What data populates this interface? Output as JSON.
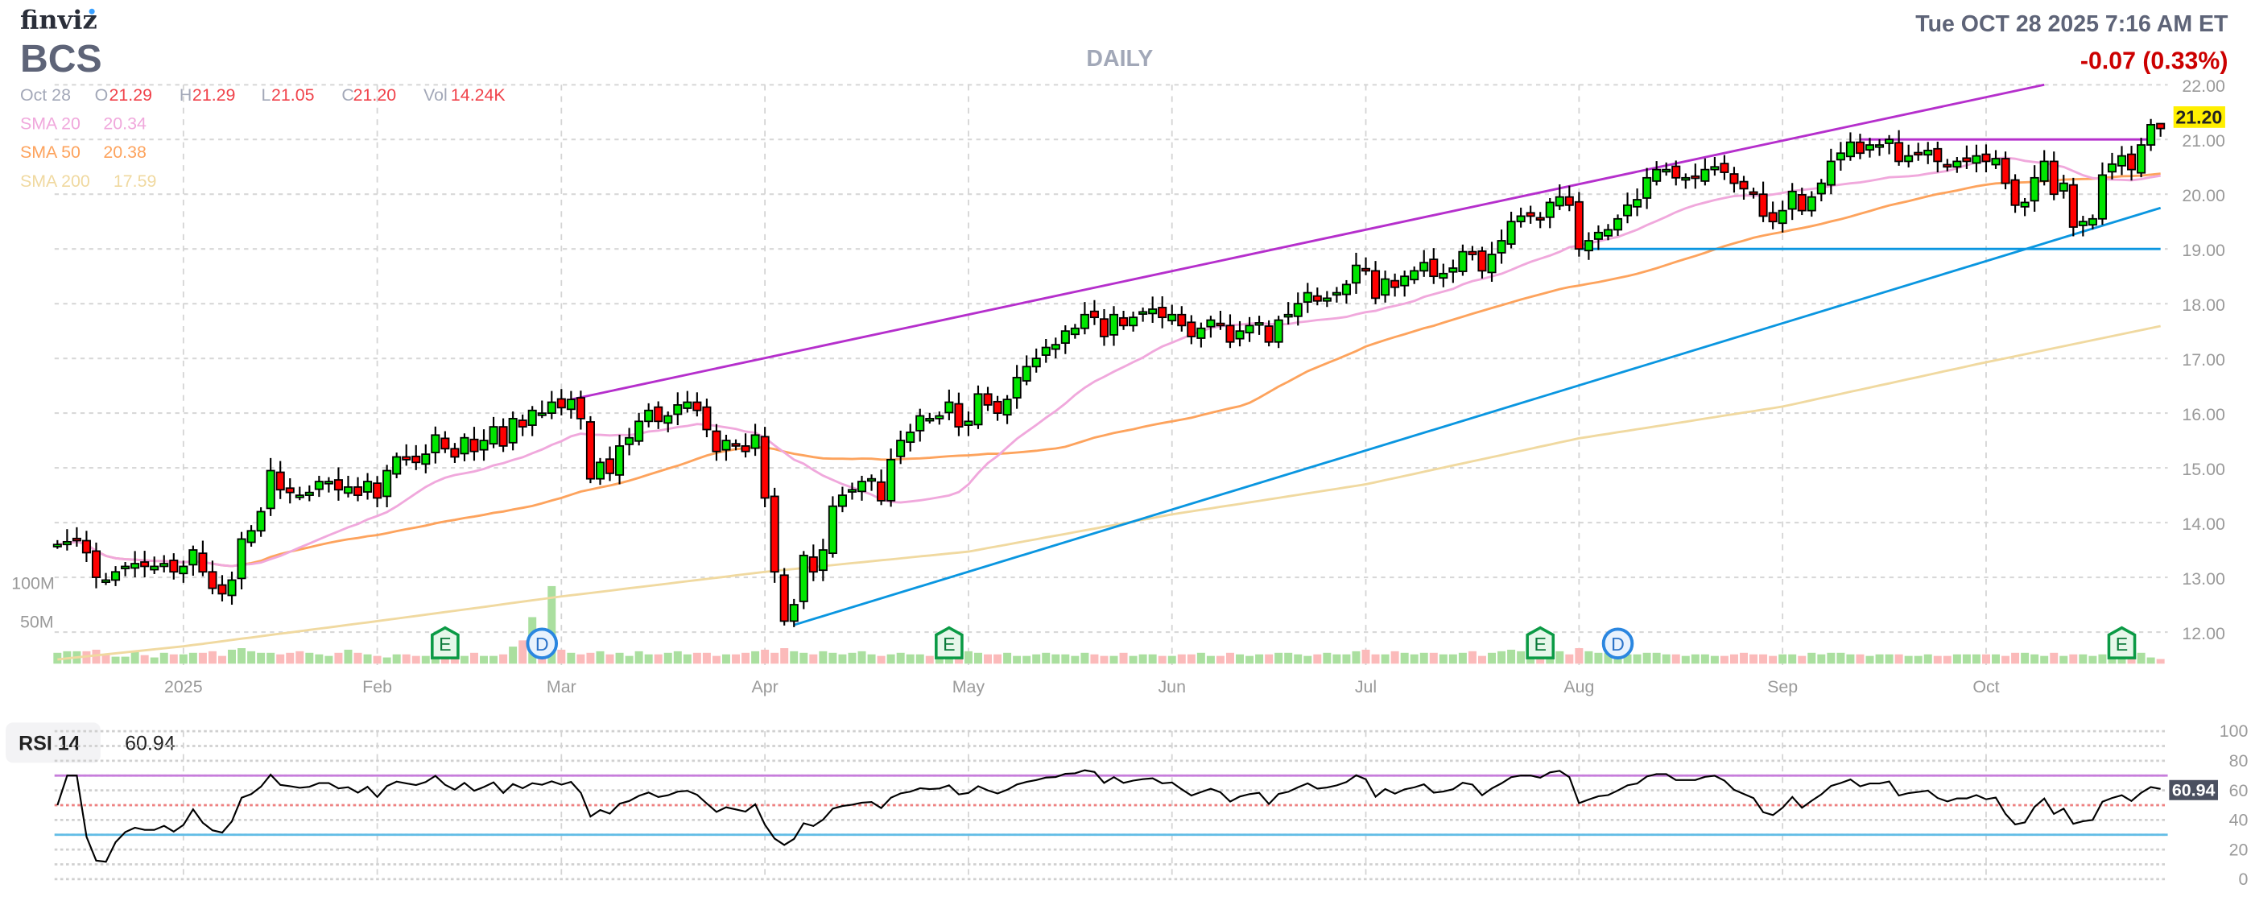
{
  "header": {
    "logo": "finviz",
    "ticker": "BCS",
    "timeframe": "DAILY",
    "datetime": "Tue OCT 28 2025 7:16 AM ET",
    "change": "-0.07 (0.33%)"
  },
  "ohlc": {
    "date": "Oct 28",
    "o_label": "O",
    "o": "21.29",
    "h_label": "H",
    "h": "21.29",
    "l_label": "L",
    "l": "21.05",
    "c_label": "C",
    "c": "21.20",
    "vol_label": "Vol",
    "vol": "14.24K"
  },
  "indicators": {
    "sma20": {
      "label": "SMA 20",
      "value": "20.34",
      "color": "#f0a8dc"
    },
    "sma50": {
      "label": "SMA 50",
      "value": "20.38",
      "color": "#fda35d"
    },
    "sma200": {
      "label": "SMA 200",
      "value": "17.59",
      "color": "#f0d9a0"
    }
  },
  "colors": {
    "up": "#00e600",
    "down": "#ff0000",
    "change": "#cc0000",
    "price_tag": "#ffef00",
    "vol_up": "#aadf9f",
    "vol_down": "#fbbaba"
  },
  "chart_data": {
    "type": "candlestick",
    "price_axis": {
      "min": 12,
      "max": 22,
      "ticks": [
        "12.00",
        "13.00",
        "14.00",
        "15.00",
        "16.00",
        "17.00",
        "18.00",
        "19.00",
        "20.00",
        "21.00",
        "22.00"
      ]
    },
    "volume_axis": {
      "ticks": [
        "50M",
        "100M"
      ]
    },
    "x_labels": [
      "2025",
      "Feb",
      "Mar",
      "Apr",
      "May",
      "Jun",
      "Jul",
      "Aug",
      "Sep",
      "Oct"
    ],
    "last_price": "21.20",
    "last_candle": {
      "open": 21.29,
      "high": 21.29,
      "low": 21.05,
      "close": 21.2
    },
    "close": [
      13.6,
      13.65,
      13.7,
      13.45,
      13.0,
      12.95,
      13.1,
      13.2,
      13.25,
      13.2,
      13.2,
      13.25,
      13.1,
      13.2,
      13.5,
      13.1,
      12.8,
      12.7,
      12.95,
      13.7,
      13.85,
      14.2,
      14.95,
      14.6,
      14.55,
      14.5,
      14.55,
      14.75,
      14.75,
      14.6,
      14.65,
      14.5,
      14.75,
      14.45,
      14.95,
      15.2,
      15.15,
      15.1,
      15.25,
      15.6,
      15.35,
      15.2,
      15.55,
      15.3,
      15.5,
      15.75,
      15.4,
      15.9,
      15.75,
      16.05,
      16.0,
      16.2,
      16.1,
      16.25,
      15.9,
      14.8,
      15.1,
      14.9,
      15.4,
      15.55,
      15.85,
      16.05,
      15.85,
      15.95,
      16.15,
      16.2,
      16.05,
      15.7,
      15.3,
      15.5,
      15.4,
      15.3,
      15.6,
      14.45,
      13.1,
      12.2,
      12.5,
      13.4,
      13.1,
      13.5,
      14.3,
      14.5,
      14.6,
      14.75,
      14.8,
      14.4,
      15.15,
      15.5,
      15.65,
      15.95,
      15.9,
      15.95,
      16.2,
      15.75,
      15.85,
      16.35,
      16.15,
      16.0,
      16.25,
      16.65,
      16.85,
      17.0,
      17.2,
      17.25,
      17.5,
      17.55,
      17.8,
      17.75,
      17.4,
      17.8,
      17.6,
      17.75,
      17.85,
      17.9,
      17.75,
      17.8,
      17.6,
      17.4,
      17.55,
      17.7,
      17.6,
      17.3,
      17.5,
      17.6,
      17.65,
      17.3,
      17.7,
      17.8,
      18.0,
      18.2,
      18.05,
      18.1,
      18.2,
      18.35,
      18.7,
      18.6,
      18.1,
      18.45,
      18.3,
      18.5,
      18.6,
      18.75,
      18.5,
      18.55,
      18.65,
      18.95,
      18.9,
      18.6,
      18.9,
      19.15,
      19.5,
      19.6,
      19.6,
      19.55,
      19.85,
      19.95,
      19.8,
      19.0,
      19.15,
      19.3,
      19.35,
      19.55,
      19.8,
      19.9,
      20.3,
      20.45,
      20.45,
      20.3,
      20.3,
      20.3,
      20.45,
      20.5,
      20.4,
      20.2,
      20.1,
      20.0,
      19.6,
      19.5,
      19.7,
      20.05,
      19.7,
      19.95,
      20.2,
      20.6,
      20.75,
      20.95,
      20.75,
      20.9,
      20.9,
      21.0,
      20.6,
      20.7,
      20.75,
      20.8,
      20.6,
      20.5,
      20.6,
      20.6,
      20.7,
      20.6,
      20.65,
      20.2,
      19.8,
      19.85,
      20.3,
      20.6,
      20.0,
      20.2,
      19.4,
      19.5,
      19.55,
      20.35,
      20.55,
      20.7,
      20.45,
      20.9,
      21.27,
      21.2
    ],
    "volume_millions": [
      14,
      16,
      16,
      16,
      18,
      12,
      9,
      9,
      16,
      11,
      8,
      14,
      12,
      12,
      14,
      14,
      16,
      10,
      18,
      20,
      16,
      14,
      14,
      12,
      14,
      16,
      14,
      12,
      10,
      14,
      18,
      14,
      12,
      10,
      8,
      12,
      12,
      10,
      10,
      10,
      10,
      12,
      10,
      14,
      10,
      10,
      12,
      22,
      30,
      60,
      22,
      100,
      18,
      14,
      12,
      14,
      16,
      12,
      14,
      10,
      16,
      12,
      12,
      14,
      16,
      12,
      14,
      14,
      10,
      12,
      12,
      14,
      16,
      18,
      14,
      20,
      16,
      14,
      12,
      16,
      14,
      12,
      14,
      16,
      12,
      10,
      12,
      14,
      12,
      12,
      10,
      14,
      14,
      12,
      16,
      14,
      12,
      12,
      14,
      10,
      10,
      12,
      14,
      12,
      12,
      10,
      14,
      12,
      10,
      10,
      14,
      10,
      12,
      12,
      10,
      10,
      12,
      12,
      14,
      10,
      10,
      14,
      12,
      10,
      12,
      12,
      14,
      14,
      12,
      10,
      12,
      14,
      12,
      12,
      16,
      18,
      12,
      12,
      16,
      14,
      12,
      14,
      14,
      12,
      12,
      14,
      16,
      10,
      14,
      16,
      18,
      16,
      12,
      10,
      14,
      16,
      12,
      20,
      16,
      14,
      14,
      12,
      12,
      12,
      14,
      14,
      12,
      12,
      10,
      12,
      12,
      10,
      10,
      12,
      14,
      12,
      12,
      10,
      12,
      12,
      10,
      14,
      12,
      14,
      14,
      12,
      12,
      10,
      12,
      12,
      12,
      10,
      10,
      12,
      10,
      10,
      12,
      12,
      12,
      12,
      12,
      10,
      14,
      14,
      12,
      10,
      14,
      10,
      12,
      12,
      10,
      12,
      10,
      12,
      10,
      14,
      8,
      6
    ],
    "sma200_monthly": [
      11.5,
      11.74,
      12.2,
      12.65,
      13.1,
      13.47,
      14.15,
      14.7,
      15.54,
      16.12,
      16.93,
      17.59
    ],
    "trendlines": [
      {
        "name": "upper-channel",
        "color": "#b52fcc",
        "from": 16.25,
        "to": 22.0
      },
      {
        "name": "rising-support",
        "color": "#0a96e0",
        "from": 12.13,
        "to": 19.75
      },
      {
        "name": "horizontal-support",
        "color": "#0a96e0",
        "level": 19.0
      },
      {
        "name": "horizontal-resistance",
        "color": "#b52fcc",
        "level": 21.0
      }
    ],
    "events": [
      {
        "label": "E"
      },
      {
        "label": "D"
      },
      {
        "label": "E"
      },
      {
        "label": "E"
      },
      {
        "label": "D"
      },
      {
        "label": "E"
      }
    ]
  },
  "rsi": {
    "label": "RSI 14",
    "value": "60.94",
    "ticks": [
      "0",
      "20",
      "40",
      "60",
      "80",
      "100"
    ],
    "overbought": 70,
    "oversold": 30,
    "mid": 50
  }
}
